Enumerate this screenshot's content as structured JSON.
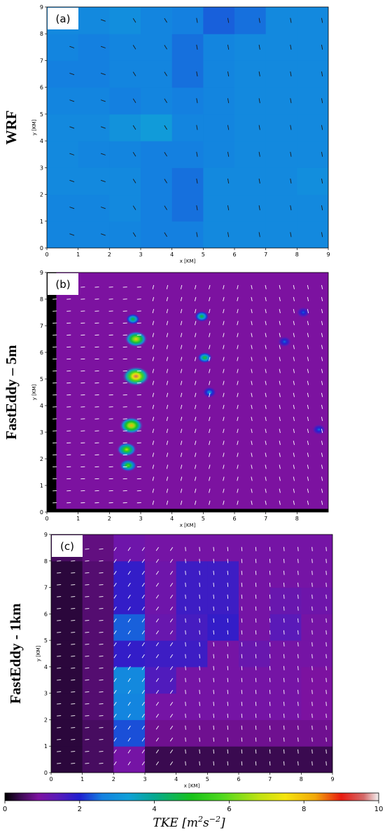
{
  "chart_data": [
    {
      "type": "heatmap",
      "panel_label": "(a)",
      "row_label": "WRF",
      "xlabel": "x [KM]",
      "ylabel": "y [KM]",
      "xlim": [
        0,
        9
      ],
      "ylim": [
        0,
        9
      ],
      "xticks": [
        "0",
        "1",
        "2",
        "3",
        "4",
        "5",
        "6",
        "7",
        "8",
        "9"
      ],
      "yticks": [
        "0",
        "1",
        "2",
        "3",
        "4",
        "5",
        "6",
        "7",
        "8",
        "9"
      ],
      "arrow_color": "#1a1a1a",
      "x_edges": [
        0,
        1,
        2,
        3,
        4,
        5,
        6,
        7,
        8,
        9
      ],
      "y_edges": [
        0,
        1,
        2,
        3,
        4,
        5,
        6,
        7,
        8,
        9
      ],
      "tke": [
        [
          2.7,
          2.7,
          2.7,
          2.6,
          2.6,
          2.8,
          2.8,
          2.8,
          2.8
        ],
        [
          2.7,
          2.7,
          2.8,
          2.6,
          2.5,
          2.8,
          2.8,
          2.8,
          2.8
        ],
        [
          2.8,
          2.8,
          2.8,
          2.6,
          2.5,
          2.8,
          2.8,
          2.8,
          2.9
        ],
        [
          2.8,
          2.7,
          2.7,
          2.6,
          2.6,
          2.7,
          2.8,
          2.8,
          2.8
        ],
        [
          2.8,
          2.8,
          3.0,
          3.2,
          2.7,
          2.7,
          2.8,
          2.8,
          2.8
        ],
        [
          2.7,
          2.7,
          2.6,
          2.7,
          2.6,
          2.7,
          2.8,
          2.8,
          2.8
        ],
        [
          2.6,
          2.6,
          2.7,
          2.7,
          2.5,
          2.7,
          2.8,
          2.8,
          2.8
        ],
        [
          2.7,
          2.6,
          2.7,
          2.7,
          2.5,
          2.7,
          2.8,
          2.8,
          2.8
        ],
        [
          2.8,
          2.8,
          2.9,
          2.7,
          2.6,
          2.4,
          2.5,
          2.8,
          2.8
        ]
      ]
    },
    {
      "type": "heatmap",
      "panel_label": "(b)",
      "row_label": "FastEddy – 5m",
      "xlabel": "x [KM]",
      "ylabel": "y [KM]",
      "xlim": [
        0,
        9
      ],
      "ylim": [
        0,
        9
      ],
      "xticks": [
        "0",
        "1",
        "2",
        "3",
        "4",
        "5",
        "6",
        "7",
        "8"
      ],
      "yticks": [
        "0",
        "1",
        "2",
        "3",
        "4",
        "5",
        "6",
        "7",
        "8",
        "9"
      ],
      "arrow_color": "#ffffff",
      "background_tke": 0.9,
      "hotspots": [
        {
          "x": 2.85,
          "y": 5.1,
          "peak": 9.5
        },
        {
          "x": 2.7,
          "y": 3.25,
          "peak": 8.2
        },
        {
          "x": 2.85,
          "y": 6.5,
          "peak": 7.8
        },
        {
          "x": 2.55,
          "y": 2.35,
          "peak": 6.8
        },
        {
          "x": 2.6,
          "y": 1.75,
          "peak": 6.0
        },
        {
          "x": 2.75,
          "y": 7.25,
          "peak": 5.0
        },
        {
          "x": 5.05,
          "y": 5.8,
          "peak": 5.2
        },
        {
          "x": 4.95,
          "y": 7.35,
          "peak": 5.0
        },
        {
          "x": 5.2,
          "y": 4.5,
          "peak": 3.0
        },
        {
          "x": 7.6,
          "y": 6.4,
          "peak": 2.5
        },
        {
          "x": 8.7,
          "y": 3.1,
          "peak": 2.5
        },
        {
          "x": 8.2,
          "y": 7.5,
          "peak": 2.4
        }
      ]
    },
    {
      "type": "heatmap",
      "panel_label": "(c)",
      "row_label": "FastEddy - 1km",
      "xlabel": "x [KM]",
      "ylabel": "y [KM]",
      "xlim": [
        0,
        9
      ],
      "ylim": [
        0,
        9
      ],
      "xticks": [
        "0",
        "1",
        "2",
        "3",
        "4",
        "5",
        "6",
        "7",
        "8",
        "9"
      ],
      "yticks": [
        "0",
        "1",
        "2",
        "3",
        "4",
        "5",
        "6",
        "7",
        "8",
        "9"
      ],
      "arrow_color": "#ffffff",
      "x_edges": [
        0,
        1,
        2,
        3,
        4,
        5,
        6,
        7,
        8,
        9
      ],
      "y_edges": [
        0,
        1,
        2,
        3,
        4,
        5,
        6,
        7,
        8,
        9
      ],
      "tke": [
        [
          0.3,
          0.5,
          1.0,
          0.4,
          0.4,
          0.4,
          0.4,
          0.4,
          0.4
        ],
        [
          0.3,
          0.5,
          2.3,
          0.8,
          0.8,
          0.8,
          0.8,
          0.8,
          0.8
        ],
        [
          0.3,
          0.6,
          2.7,
          1.0,
          1.0,
          1.0,
          1.0,
          1.0,
          0.9
        ],
        [
          0.3,
          0.6,
          2.8,
          1.5,
          1.0,
          1.0,
          1.0,
          1.0,
          0.9
        ],
        [
          0.3,
          0.6,
          1.8,
          1.7,
          1.7,
          1.0,
          1.2,
          1.0,
          1.0
        ],
        [
          0.3,
          0.6,
          2.4,
          1.2,
          1.6,
          1.8,
          1.0,
          1.4,
          1.0
        ],
        [
          0.3,
          0.6,
          1.8,
          1.1,
          1.7,
          1.7,
          1.0,
          1.2,
          1.1
        ],
        [
          0.3,
          0.6,
          1.8,
          1.1,
          1.7,
          1.7,
          1.0,
          1.0,
          1.0
        ],
        [
          0.5,
          0.7,
          1.1,
          1.0,
          1.0,
          1.0,
          1.0,
          1.0,
          1.0
        ]
      ]
    }
  ],
  "colorbar": {
    "ticks": [
      "0",
      "2",
      "4",
      "6",
      "8",
      "10"
    ],
    "tick_values": [
      0,
      2,
      4,
      6,
      8,
      10
    ],
    "vmin": 0,
    "vmax": 10,
    "label": "TKE [m²s⁻²]",
    "colormap_stops": [
      {
        "v": 0.0,
        "c": "#000000"
      },
      {
        "v": 0.4,
        "c": "#3a0a50"
      },
      {
        "v": 0.9,
        "c": "#7c12a0"
      },
      {
        "v": 1.4,
        "c": "#5a1ab8"
      },
      {
        "v": 2.0,
        "c": "#1f1fd0"
      },
      {
        "v": 2.6,
        "c": "#1480e0"
      },
      {
        "v": 3.3,
        "c": "#10a0d8"
      },
      {
        "v": 4.0,
        "c": "#06a890"
      },
      {
        "v": 5.0,
        "c": "#18c21a"
      },
      {
        "v": 5.8,
        "c": "#4ed81e"
      },
      {
        "v": 6.8,
        "c": "#bfe212"
      },
      {
        "v": 7.5,
        "c": "#f5e40c"
      },
      {
        "v": 8.3,
        "c": "#f2a80a"
      },
      {
        "v": 9.0,
        "c": "#e81a10"
      },
      {
        "v": 9.6,
        "c": "#d46a6a"
      },
      {
        "v": 10.0,
        "c": "#f2f2f2"
      }
    ]
  }
}
